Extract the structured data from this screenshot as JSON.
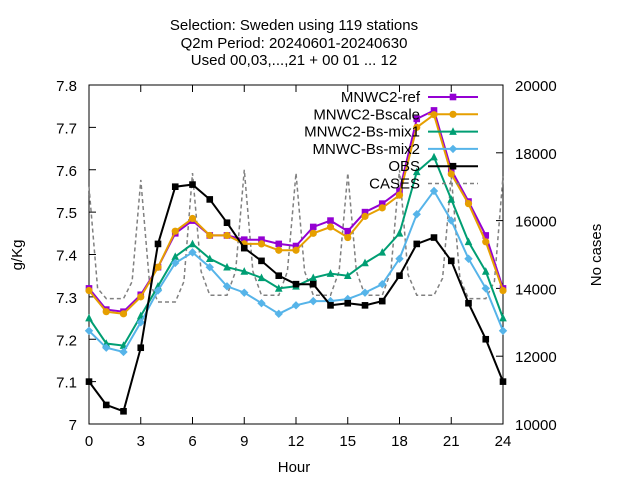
{
  "chart_data": {
    "type": "line",
    "title_lines": [
      "Selection: Sweden using   119 stations",
      "Q2m   Period: 20240601-20240630",
      "Used 00,03,...,21 + 00 01 ... 12"
    ],
    "xlabel": "Hour",
    "ylabel": "g/Kg",
    "y2label": "No cases",
    "xlim": [
      0,
      24
    ],
    "ylim": [
      7.0,
      7.8
    ],
    "y2lim": [
      10000,
      20000
    ],
    "xticks": [
      0,
      3,
      6,
      9,
      12,
      15,
      18,
      21,
      24
    ],
    "yticks": [
      "7",
      "7.1",
      "7.2",
      "7.3",
      "7.4",
      "7.5",
      "7.6",
      "7.7",
      "7.8"
    ],
    "y2ticks": [
      "10000",
      "12000",
      "14000",
      "16000",
      "18000",
      "20000"
    ],
    "legend_position": "top-right",
    "grid": false,
    "x": [
      0,
      1,
      2,
      3,
      4,
      5,
      6,
      7,
      8,
      9,
      10,
      11,
      12,
      13,
      14,
      15,
      16,
      17,
      18,
      19,
      20,
      21,
      22,
      23,
      24
    ],
    "series": [
      {
        "name": "MNWC2-ref",
        "color": "#9400d3",
        "marker": "square",
        "values": [
          7.32,
          7.27,
          7.265,
          7.305,
          7.37,
          7.45,
          7.48,
          7.445,
          7.445,
          7.435,
          7.435,
          7.425,
          7.42,
          7.465,
          7.48,
          7.455,
          7.5,
          7.52,
          7.55,
          7.72,
          7.74,
          7.6,
          7.525,
          7.445,
          7.32
        ]
      },
      {
        "name": "MNWC2-Bscale",
        "color": "#e69f00",
        "marker": "circle",
        "values": [
          7.315,
          7.265,
          7.26,
          7.3,
          7.37,
          7.455,
          7.485,
          7.445,
          7.445,
          7.425,
          7.425,
          7.41,
          7.41,
          7.45,
          7.465,
          7.44,
          7.49,
          7.51,
          7.54,
          7.7,
          7.73,
          7.59,
          7.52,
          7.43,
          7.315
        ]
      },
      {
        "name": "MNWC2-Bs-mix1",
        "color": "#009e73",
        "marker": "triangle",
        "values": [
          7.25,
          7.19,
          7.185,
          7.255,
          7.325,
          7.395,
          7.425,
          7.39,
          7.37,
          7.36,
          7.345,
          7.32,
          7.325,
          7.345,
          7.355,
          7.35,
          7.38,
          7.405,
          7.45,
          7.595,
          7.63,
          7.53,
          7.43,
          7.36,
          7.25
        ]
      },
      {
        "name": "MNWC-Bs-mix2",
        "color": "#56b4e9",
        "marker": "diamond",
        "values": [
          7.22,
          7.18,
          7.17,
          7.24,
          7.315,
          7.38,
          7.405,
          7.37,
          7.325,
          7.31,
          7.285,
          7.26,
          7.28,
          7.29,
          7.29,
          7.295,
          7.31,
          7.33,
          7.39,
          7.495,
          7.55,
          7.48,
          7.39,
          7.32,
          7.22
        ]
      },
      {
        "name": "OBS",
        "color": "#000000",
        "marker": "square",
        "values": [
          7.1,
          7.045,
          7.03,
          7.18,
          7.425,
          7.56,
          7.565,
          7.53,
          7.475,
          7.415,
          7.385,
          7.35,
          7.33,
          7.33,
          7.28,
          7.285,
          7.28,
          7.29,
          7.35,
          7.425,
          7.44,
          7.385,
          7.285,
          7.2,
          7.1
        ]
      }
    ],
    "cases": {
      "name": "CASES",
      "color": "#808080",
      "axis": "right",
      "x": [
        0,
        0.5,
        1,
        1.5,
        2,
        2.5,
        3,
        3.5,
        4,
        4.5,
        5,
        5.5,
        6,
        6.5,
        7,
        7.5,
        8,
        8.5,
        9,
        9.5,
        10,
        10.5,
        11,
        11.5,
        12,
        12.5,
        13,
        13.5,
        14,
        14.5,
        15,
        15.5,
        16,
        16.5,
        17,
        17.5,
        18,
        18.5,
        19,
        19.5,
        20,
        20.5,
        21,
        21.5,
        22,
        22.5,
        23,
        23.5,
        24
      ],
      "values": [
        17000,
        14000,
        13700,
        13700,
        13700,
        14200,
        17200,
        14200,
        13600,
        13600,
        13600,
        14200,
        17400,
        14500,
        13800,
        13800,
        13800,
        14500,
        17500,
        14500,
        13800,
        13800,
        13800,
        14500,
        17400,
        14500,
        13800,
        13800,
        13800,
        14500,
        17400,
        14500,
        13800,
        13800,
        13800,
        14500,
        17500,
        14400,
        13800,
        13800,
        13800,
        14300,
        17300,
        14300,
        13700,
        13700,
        13700,
        14200,
        17300
      ]
    }
  }
}
